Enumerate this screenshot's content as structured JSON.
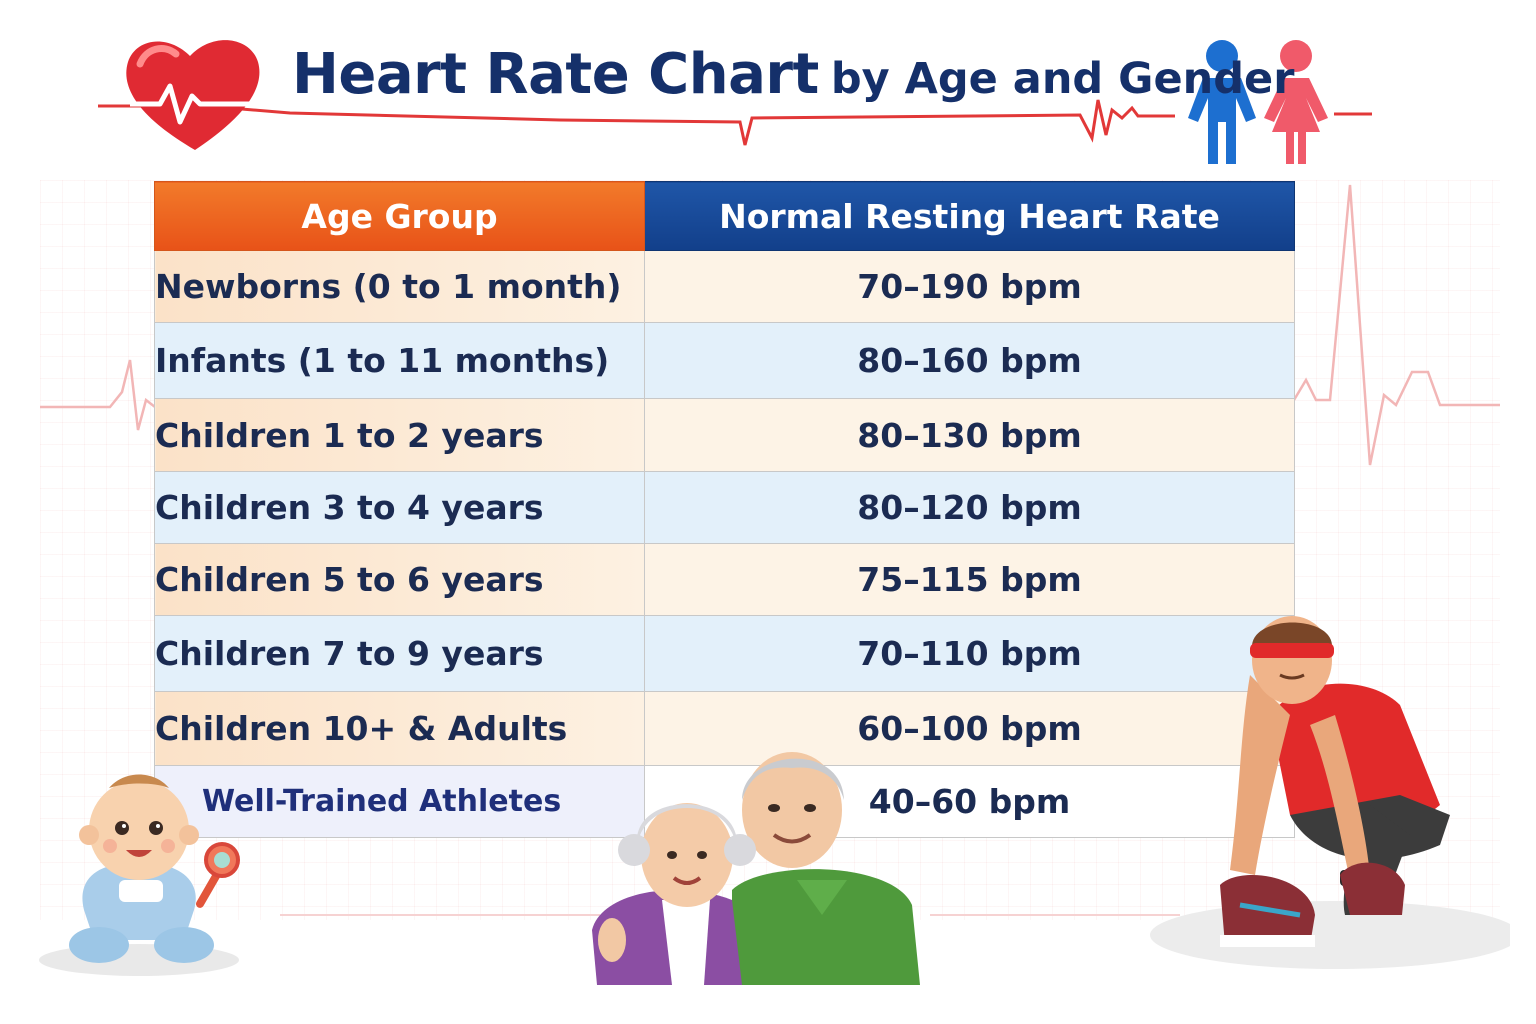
{
  "title": {
    "main": "Heart Rate Chart",
    "sub": "by Age and Gender"
  },
  "icons": [
    "heart-icon",
    "male-icon",
    "female-icon",
    "baby-illustration",
    "elderly-couple-illustration",
    "athlete-illustration"
  ],
  "colors": {
    "header_age": "#e85a1f",
    "header_rate": "#17479a",
    "title": "#15306a",
    "heart": "#e02a33",
    "ecg": "#e23838",
    "male": "#1d6fd0",
    "female": "#f05a6a"
  },
  "chart_data": {
    "type": "table",
    "columns": [
      "Age Group",
      "Normal Resting Heart Rate"
    ],
    "rows": [
      {
        "age_group": "Newborns (0 to 1 month)",
        "rate": "70–190 bpm"
      },
      {
        "age_group": "Infants (1 to 11 months)",
        "rate": "80–160 bpm"
      },
      {
        "age_group": "Children 1 to 2 years",
        "rate": "80–130 bpm"
      },
      {
        "age_group": "Children 3 to 4 years",
        "rate": "80–120 bpm"
      },
      {
        "age_group": "Children 5 to 6 years",
        "rate": "75–115 bpm"
      },
      {
        "age_group": "Children 7 to 9 years",
        "rate": "70–110 bpm"
      },
      {
        "age_group": "Children 10+ & Adults",
        "rate": "60–100 bpm"
      },
      {
        "age_group": "Well-Trained Athletes",
        "rate": "40–60 bpm"
      }
    ]
  }
}
